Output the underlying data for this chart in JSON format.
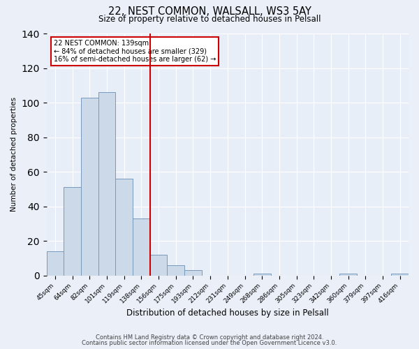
{
  "title1": "22, NEST COMMON, WALSALL, WS3 5AY",
  "title2": "Size of property relative to detached houses in Pelsall",
  "xlabel": "Distribution of detached houses by size in Pelsall",
  "ylabel": "Number of detached properties",
  "bar_labels": [
    "45sqm",
    "64sqm",
    "82sqm",
    "101sqm",
    "119sqm",
    "138sqm",
    "156sqm",
    "175sqm",
    "193sqm",
    "212sqm",
    "231sqm",
    "249sqm",
    "268sqm",
    "286sqm",
    "305sqm",
    "323sqm",
    "342sqm",
    "360sqm",
    "379sqm",
    "397sqm",
    "416sqm"
  ],
  "bar_values": [
    14,
    51,
    103,
    106,
    56,
    33,
    12,
    6,
    3,
    0,
    0,
    0,
    1,
    0,
    0,
    0,
    0,
    1,
    0,
    0,
    1
  ],
  "bar_color": "#ccd9e8",
  "bar_edge_color": "#7799bb",
  "ylim": [
    0,
    140
  ],
  "yticks": [
    0,
    20,
    40,
    60,
    80,
    100,
    120,
    140
  ],
  "vline_color": "#cc0000",
  "annotation_title": "22 NEST COMMON: 139sqm",
  "annotation_line1": "← 84% of detached houses are smaller (329)",
  "annotation_line2": "16% of semi-detached houses are larger (62) →",
  "box_color": "#cc0000",
  "footer1": "Contains HM Land Registry data © Crown copyright and database right 2024.",
  "footer2": "Contains public sector information licensed under the Open Government Licence v3.0.",
  "bg_color": "#eaeff8",
  "plot_bg_color": "#e8eef8"
}
